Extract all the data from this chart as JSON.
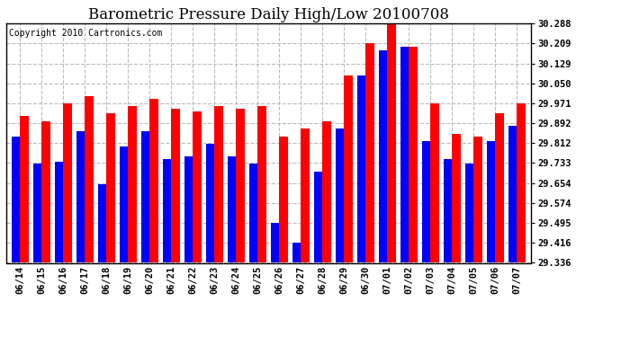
{
  "title": "Barometric Pressure Daily High/Low 20100708",
  "copyright": "Copyright 2010 Cartronics.com",
  "dates": [
    "06/14",
    "06/15",
    "06/16",
    "06/17",
    "06/18",
    "06/19",
    "06/20",
    "06/21",
    "06/22",
    "06/23",
    "06/24",
    "06/25",
    "06/26",
    "06/27",
    "06/28",
    "06/29",
    "06/30",
    "07/01",
    "07/02",
    "07/03",
    "07/04",
    "07/05",
    "07/06",
    "07/07"
  ],
  "highs": [
    29.92,
    29.9,
    29.97,
    30.0,
    29.93,
    29.96,
    29.99,
    29.95,
    29.94,
    29.96,
    29.95,
    29.96,
    29.84,
    29.87,
    29.9,
    30.08,
    30.21,
    30.288,
    30.195,
    29.97,
    29.85,
    29.84,
    29.93,
    29.97
  ],
  "lows": [
    29.84,
    29.73,
    29.74,
    29.86,
    29.65,
    29.8,
    29.86,
    29.75,
    29.76,
    29.81,
    29.76,
    29.73,
    29.495,
    29.416,
    29.7,
    29.87,
    30.08,
    30.18,
    30.195,
    29.82,
    29.75,
    29.73,
    29.82,
    29.88
  ],
  "ymin": 29.336,
  "ymax": 30.288,
  "yticks": [
    29.336,
    29.416,
    29.495,
    29.574,
    29.654,
    29.733,
    29.812,
    29.892,
    29.971,
    30.05,
    30.129,
    30.209,
    30.288
  ],
  "bar_width": 0.4,
  "high_color": "#ff0000",
  "low_color": "#0000ff",
  "bg_color": "#ffffff",
  "plot_bg_color": "#ffffff",
  "grid_color": "#bbbbbb",
  "title_fontsize": 12,
  "copyright_fontsize": 7
}
